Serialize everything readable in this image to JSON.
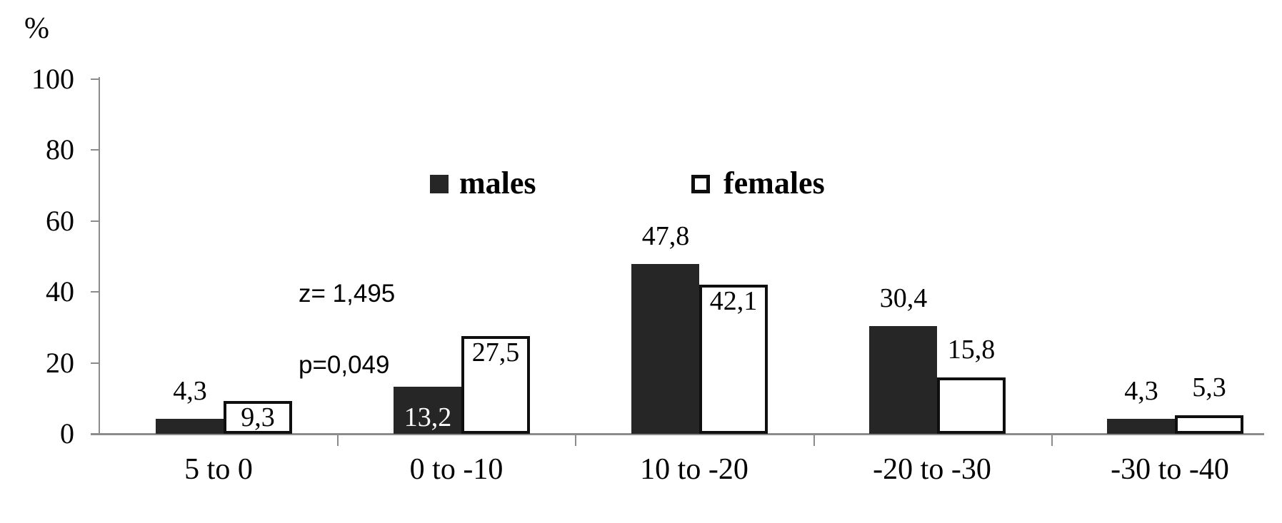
{
  "chart_data": {
    "type": "bar",
    "title": "",
    "xlabel": "",
    "ylabel": "%",
    "categories": [
      "5 to 0",
      "0 to -10",
      "10 to -20",
      "-20 to -30",
      "-30 to -40"
    ],
    "series": [
      {
        "name": "males",
        "values": [
          4.3,
          13.2,
          47.8,
          30.4,
          4.3
        ],
        "labels": [
          "4,3",
          "13,2",
          "47,8",
          "30,4",
          "4,3"
        ],
        "label_positions": [
          "above",
          "inside-bottom",
          "above",
          "above",
          "above"
        ],
        "swatch": "filled"
      },
      {
        "name": "females",
        "values": [
          9.3,
          27.5,
          42.1,
          15.8,
          5.3
        ],
        "labels": [
          "9,3",
          "27,5",
          "42,1",
          "15,8",
          "5,3"
        ],
        "label_positions": [
          "inside-top",
          "inside-top",
          "inside-top",
          "above",
          "above"
        ],
        "swatch": "outline"
      }
    ],
    "y_ticks": [
      "0",
      "20",
      "40",
      "60",
      "80",
      "100"
    ],
    "ylim": [
      0,
      100
    ],
    "grid": false,
    "legend_position": "top-center",
    "annotations": [
      {
        "id": "z-stat",
        "text": "z= 1,495"
      },
      {
        "id": "p-value",
        "text": "p=0,049"
      }
    ]
  },
  "ylabel": "%",
  "legend": {
    "items": [
      {
        "label": "males",
        "swatch": "filled"
      },
      {
        "label": "females",
        "swatch": "outline"
      }
    ]
  },
  "colors": {
    "male_fill": "#262626",
    "female_fill": "#ffffff",
    "bar_border": "#0f0f0f",
    "axis": "#8c8c8c",
    "text": "#000000"
  }
}
